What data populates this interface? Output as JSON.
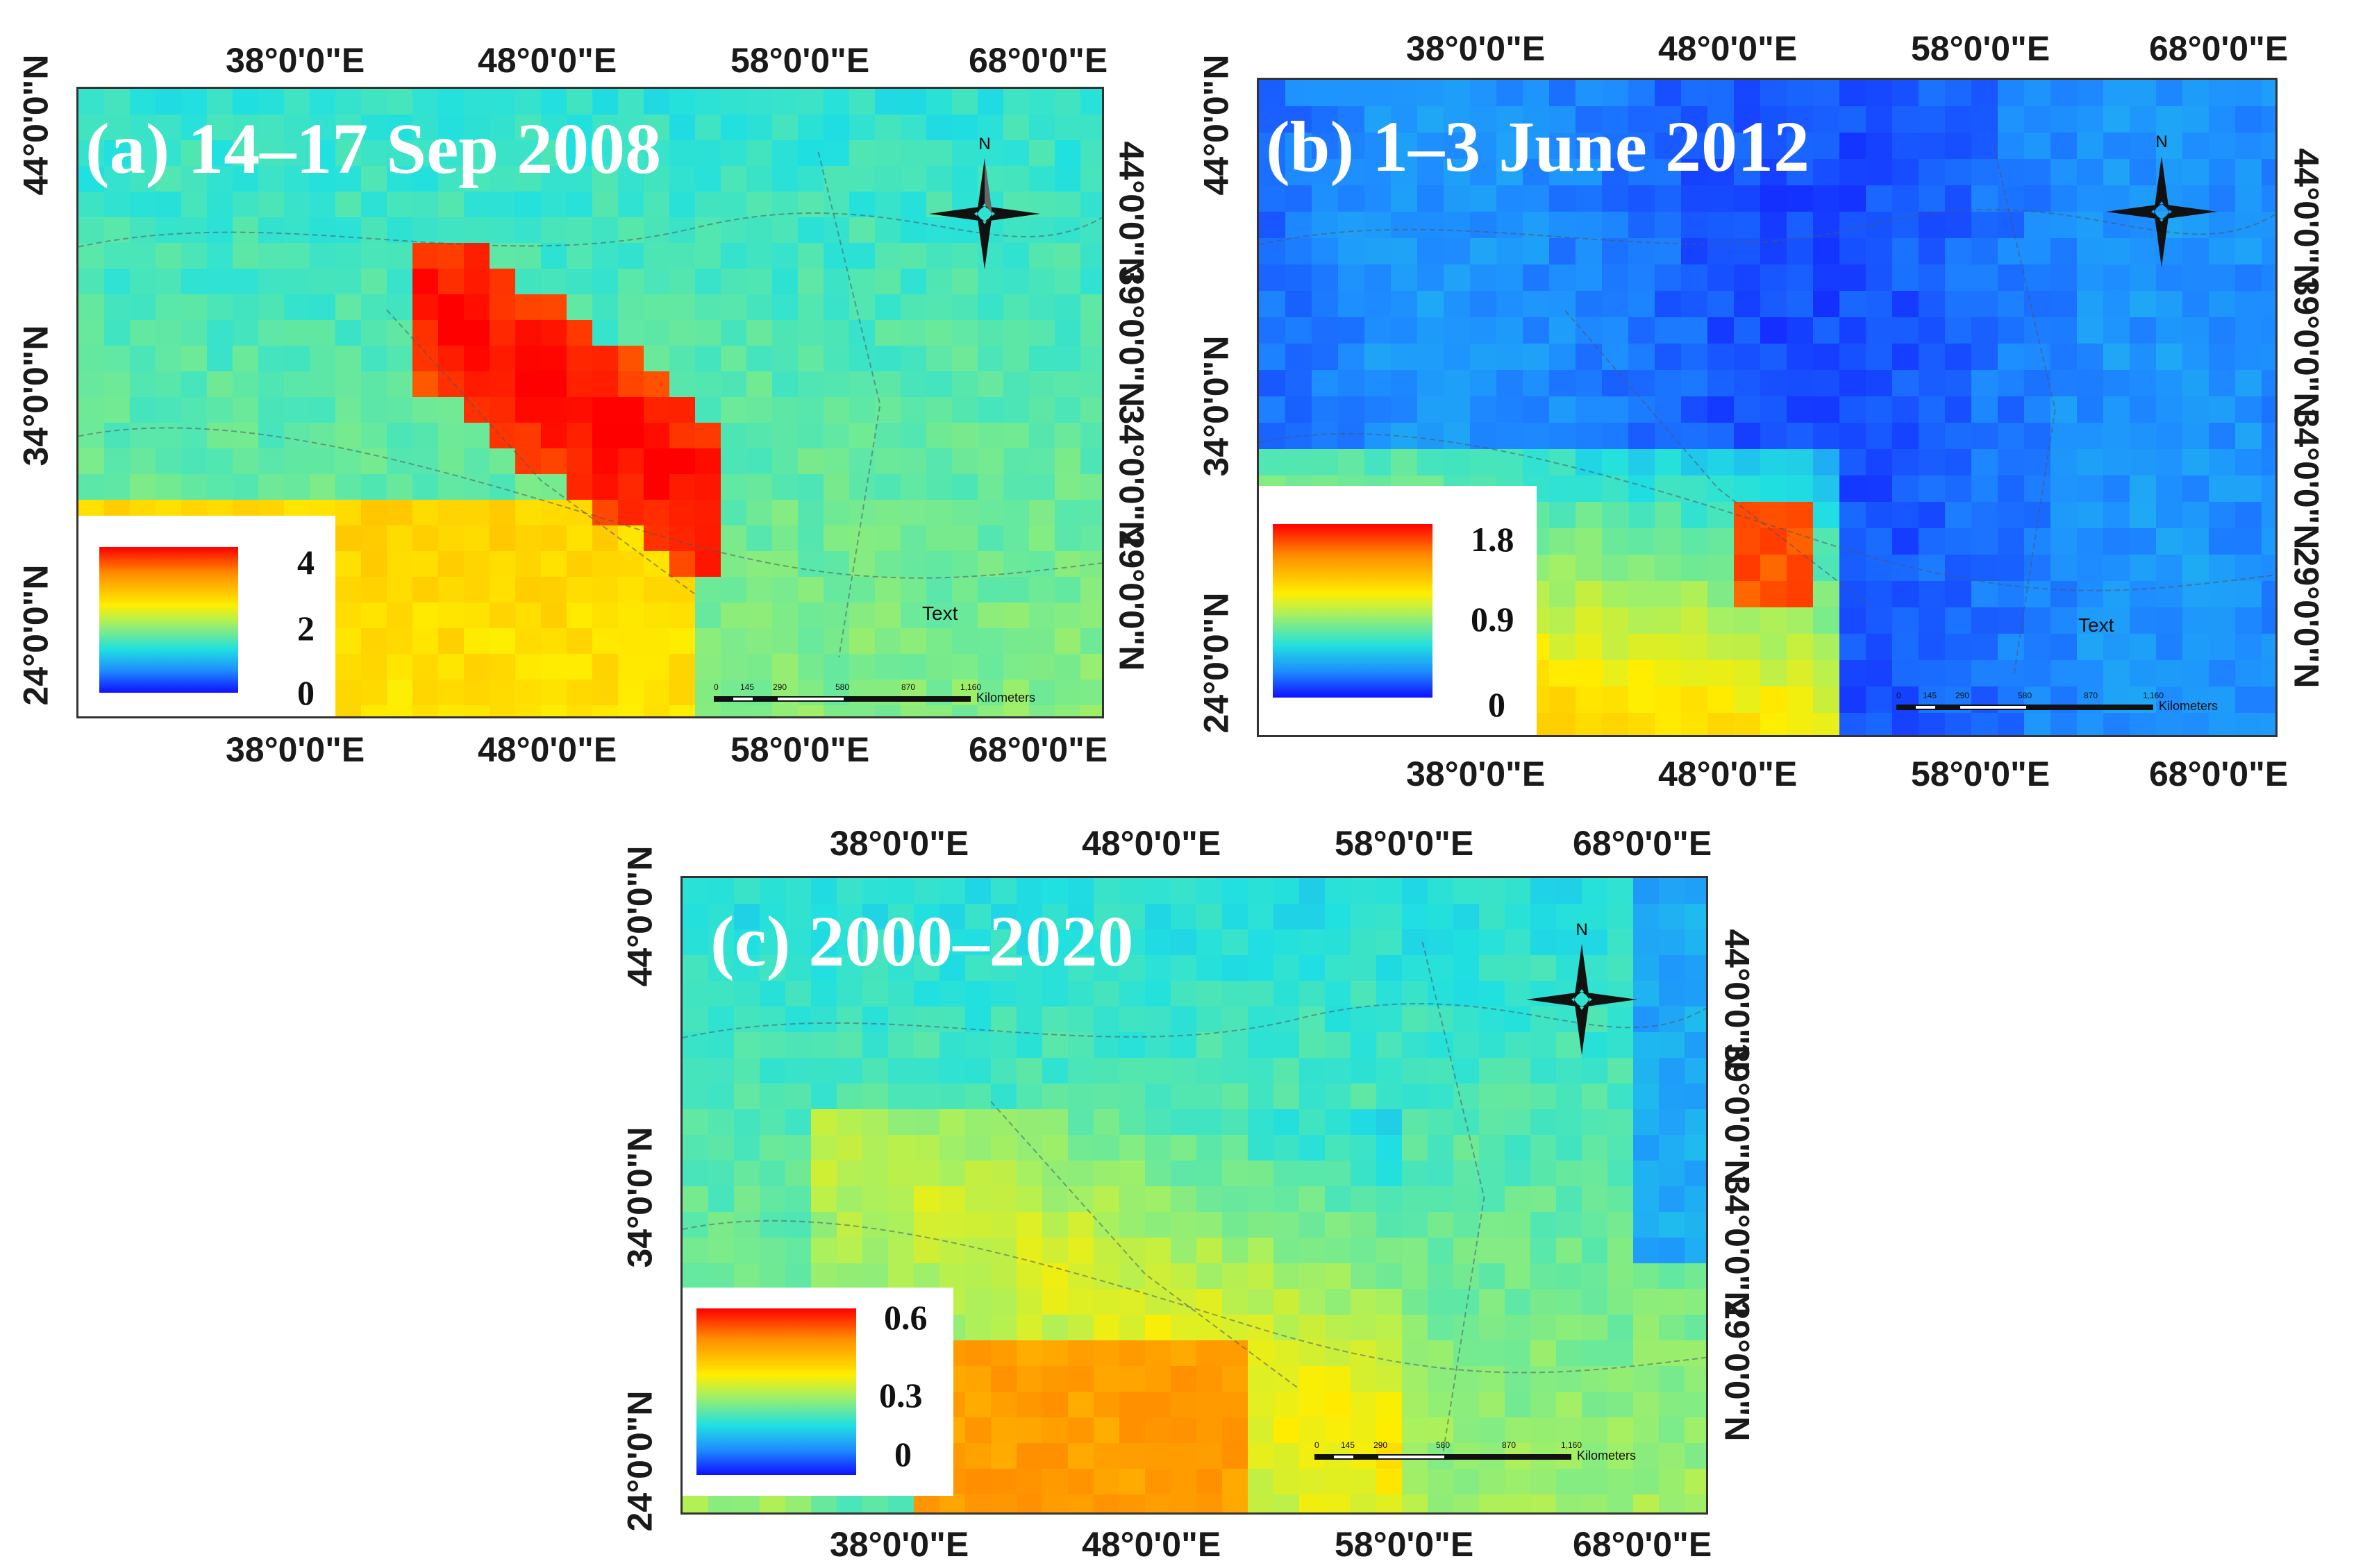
{
  "figure": {
    "lon_labels": [
      "38°0'0\"E",
      "48°0'0\"E",
      "58°0'0\"E",
      "68°0'0\"E"
    ],
    "lat_labels_left": [
      "44°0'0\"N",
      "34°0'0\"N",
      "24°0'0\"N"
    ],
    "lat_labels_right": [
      "44°0'0\"N",
      "39°0'0\"N",
      "34°0'0\"N",
      "29°0'0\"N"
    ],
    "compass_letter": "N",
    "scale_ticks": [
      "0",
      "145",
      "290",
      "580",
      "870",
      "1,160"
    ],
    "scale_unit": "Kilometers",
    "placeholder_text": "Text"
  },
  "panels": [
    {
      "id": "a",
      "title": "(a) 14–17 Sep 2008",
      "legend": {
        "max": "4",
        "mid": "2",
        "min": "0"
      },
      "colors": {
        "high": "#ff0000",
        "low": "#1010ff"
      }
    },
    {
      "id": "b",
      "title": "(b) 1–3 June 2012",
      "legend": {
        "max": "1.8",
        "mid": "0.9",
        "min": "0"
      },
      "colors": {
        "high": "#ff0000",
        "low": "#1010ff"
      }
    },
    {
      "id": "c",
      "title": "(c) 2000–2020",
      "legend": {
        "max": "0.6",
        "mid": "0.3",
        "min": "0"
      },
      "colors": {
        "high": "#ff0000",
        "low": "#1010ff"
      }
    }
  ]
}
